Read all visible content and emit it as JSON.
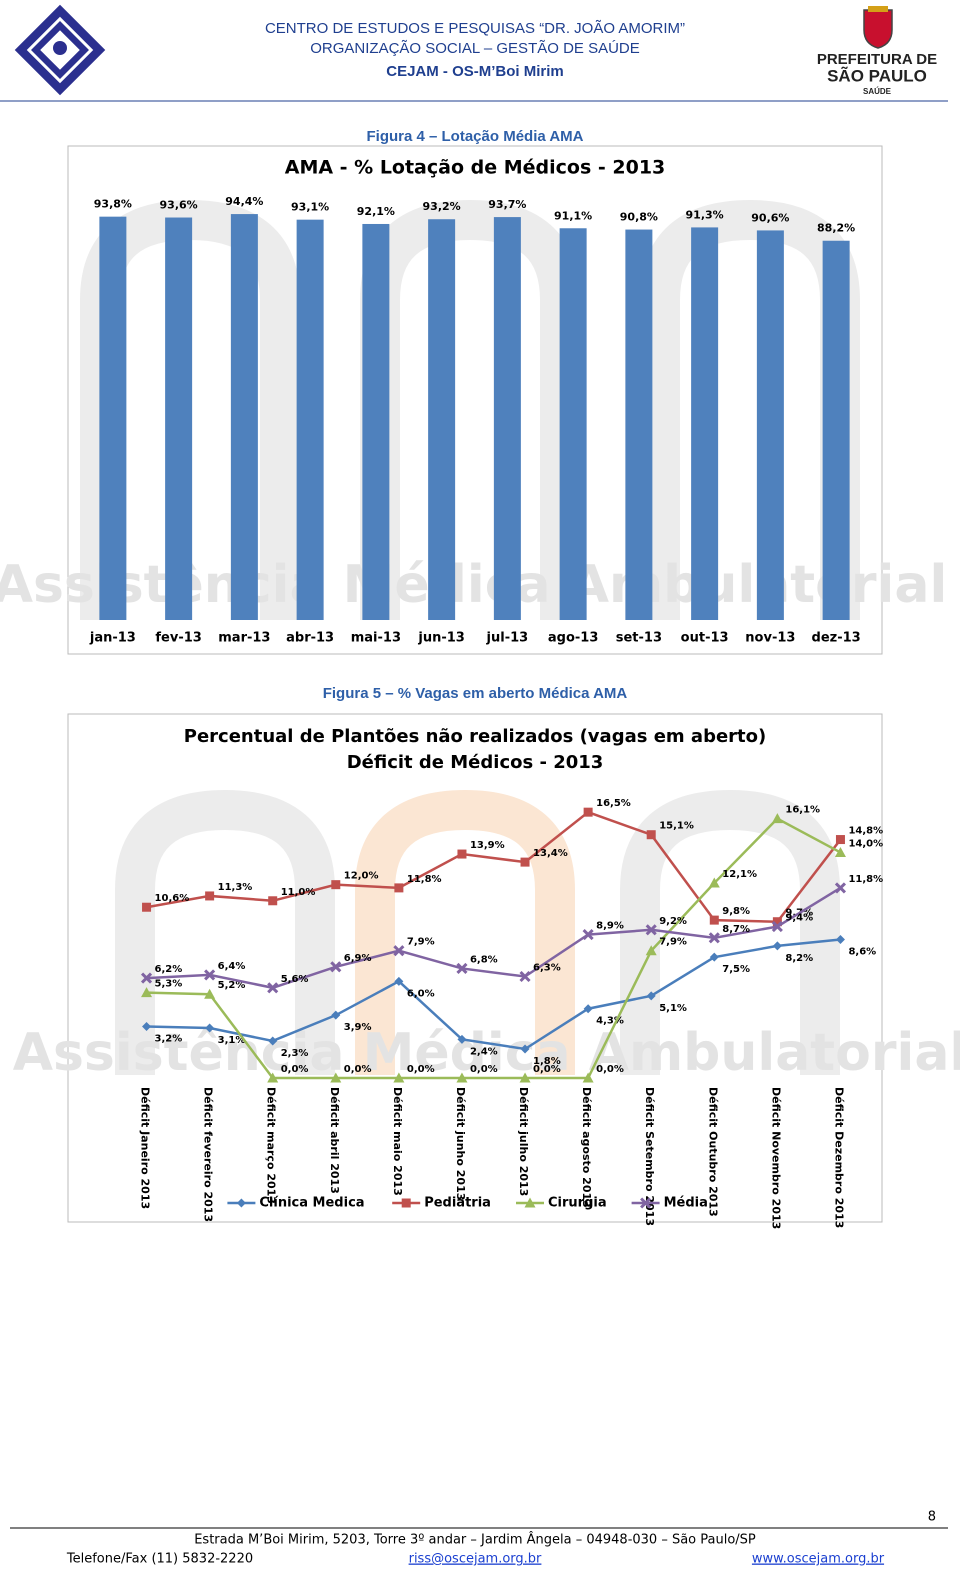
{
  "header": {
    "line1": "CENTRO DE ESTUDOS E PESQUISAS “DR. JOÃO AMORIM”",
    "line2": "ORGANIZAÇÃO SOCIAL – GESTÃO DE SAÚDE",
    "line3": "CEJAM - OS-M’Boi Mirim",
    "logo_right": [
      "PREFEITURA DE",
      "SÃO PAULO",
      "SAÚDE"
    ]
  },
  "captions": [
    "Figura 4 – Lotação Média  AMA",
    "Figura 5 – % Vagas em aberto Médica  AMA"
  ],
  "chart_data": [
    {
      "type": "bar",
      "title": "AMA - % Lotação de Médicos - 2013",
      "watermark": "Assistência Médica Ambulatorial",
      "categories": [
        "jan-13",
        "fev-13",
        "mar-13",
        "abr-13",
        "mai-13",
        "jun-13",
        "jul-13",
        "ago-13",
        "set-13",
        "out-13",
        "nov-13",
        "dez-13"
      ],
      "values": [
        93.8,
        93.6,
        94.4,
        93.1,
        92.1,
        93.2,
        93.7,
        91.1,
        90.8,
        91.3,
        90.6,
        88.2
      ],
      "value_labels": [
        "93,8%",
        "93,6%",
        "94,4%",
        "93,1%",
        "92,1%",
        "93,2%",
        "93,7%",
        "91,1%",
        "90,8%",
        "91,3%",
        "90,6%",
        "88,2%"
      ],
      "color": "#4f81bd",
      "ylim": [
        0,
        100
      ]
    },
    {
      "type": "line",
      "title": "Percentual de Plantões não realizados  (vagas em aberto)",
      "subtitle": "Déficit de Médicos - 2013",
      "watermark": "Assistência Médica Ambulatorial",
      "categories": [
        "Déficit Janeiro 2013",
        "Déficit fevereiro 2013",
        "Déficit março 2013",
        "Déficit abril 2013",
        "Déficit maio 2013",
        "Déficit junho 2013",
        "Déficit julho 2013",
        "Déficit agosto 2013",
        "Déficit Setembro 2013",
        "Déficit Outubro 2013",
        "Déficit Novembro 2013",
        "Déficit Dezembro 2013"
      ],
      "series": [
        {
          "name": "Clínica Medica",
          "color": "#4a7ebb",
          "marker": "diamond",
          "values": [
            3.2,
            3.1,
            2.3,
            3.9,
            6.0,
            2.4,
            1.8,
            4.3,
            5.1,
            7.5,
            8.2,
            8.6
          ],
          "value_labels": [
            "3,2%",
            "3,1%",
            "2,3%",
            "3,9%",
            "6,0%",
            "2,4%",
            "1,8%",
            "4,3%",
            "5,1%",
            "7,5%",
            "8,2%",
            "8,6%"
          ]
        },
        {
          "name": "Pediatria",
          "color": "#c0504d",
          "marker": "square",
          "values": [
            10.6,
            11.3,
            11.0,
            12.0,
            11.8,
            13.9,
            13.4,
            16.5,
            15.1,
            9.8,
            9.7,
            14.8
          ],
          "value_labels": [
            "10,6%",
            "11,3%",
            "11,0%",
            "12,0%",
            "11,8%",
            "13,9%",
            "13,4%",
            "16,5%",
            "15,1%",
            "9,8%",
            "9,7%",
            "14,8%"
          ]
        },
        {
          "name": "Cirurgia",
          "color": "#9bbb59",
          "marker": "triangle",
          "values": [
            5.3,
            5.2,
            0.0,
            0.0,
            0.0,
            0.0,
            0.0,
            0.0,
            7.9,
            12.1,
            16.1,
            14.0
          ],
          "value_labels": [
            "5,3%",
            "5,2%",
            "0,0%",
            "0,0%",
            "0,0%",
            "0,0%",
            "0,0%",
            "0,0%",
            "7,9%",
            "12,1%",
            "16,1%",
            "14,0%"
          ]
        },
        {
          "name": "Média",
          "color": "#8064a2",
          "marker": "x",
          "values": [
            6.2,
            6.4,
            5.6,
            6.9,
            7.9,
            6.8,
            6.3,
            8.9,
            9.2,
            8.7,
            9.4,
            11.8
          ],
          "value_labels": [
            "6,2%",
            "6,4%",
            "5,6%",
            "6,9%",
            "7,9%",
            "6,8%",
            "6,3%",
            "8,9%",
            "9,2%",
            "8,7%",
            "9,4%",
            "11,8%"
          ]
        }
      ],
      "ylim": [
        0,
        18
      ]
    }
  ],
  "footer": {
    "page": "8",
    "address": "Estrada M’Boi Mirim, 5203, Torre 3º andar – Jardim Ângela – 04948-030 – São Paulo/SP",
    "phone": "Telefone/Fax (11) 5832-2220",
    "email": "riss@oscejam.org.br",
    "website": "www.oscejam.org.br"
  }
}
